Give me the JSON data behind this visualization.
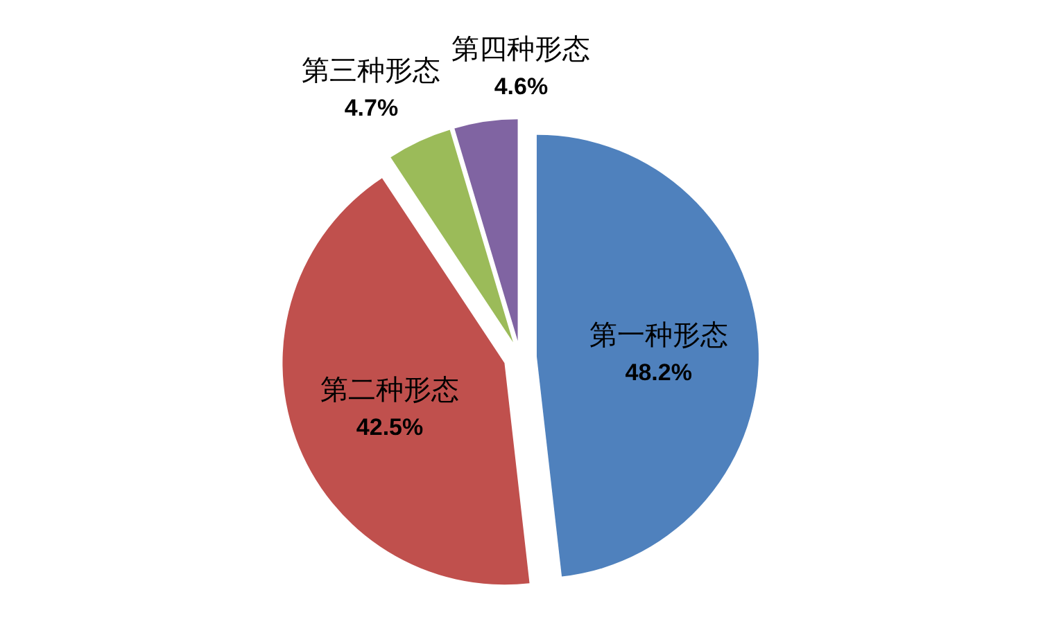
{
  "chart_data": {
    "type": "pie",
    "categories": [
      "第一种形态",
      "第二种形态",
      "第三种形态",
      "第四种形态"
    ],
    "values": [
      48.2,
      42.5,
      4.7,
      4.6
    ],
    "colors": [
      "#4f81bd",
      "#c0504d",
      "#9bbb59",
      "#8064a2"
    ],
    "value_labels": [
      "48.2%",
      "42.5%",
      "4.7%",
      "4.6%"
    ]
  }
}
